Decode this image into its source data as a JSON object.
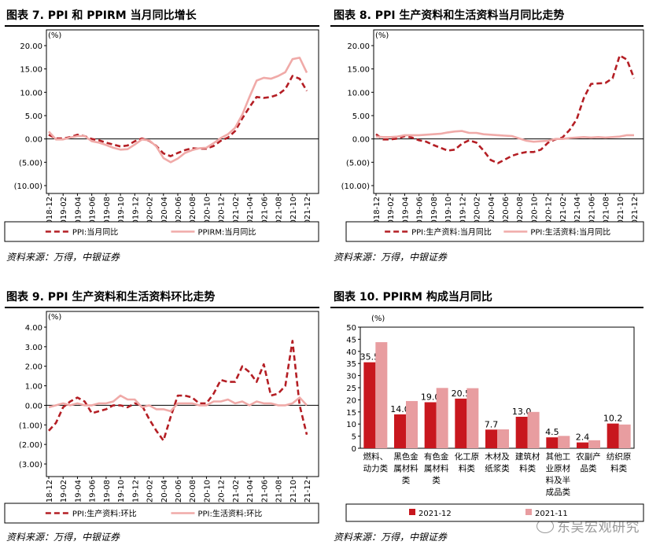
{
  "panels": [
    {
      "title": "图表 7. PPI 和 PPIRM 当月同比增长",
      "source": "资料来源：万得，中银证券"
    },
    {
      "title": "图表 8. PPI 生产资料和生活资料当月同比走势",
      "source": "资料来源：万得，中银证券"
    },
    {
      "title": "图表 9. PPI 生产资料和生活资料环比走势",
      "source": "资料来源：万得，中银证券"
    },
    {
      "title": "图表 10. PPIRM 构成当月同比",
      "source": "资料来源：万得，中银证券"
    }
  ],
  "watermark": "东吴宏观研究",
  "chart_data": [
    {
      "type": "line",
      "unit_label": "(%)",
      "x": [
        "2018-12",
        "2019-01",
        "2019-02",
        "2019-03",
        "2019-04",
        "2019-05",
        "2019-06",
        "2019-07",
        "2019-08",
        "2019-09",
        "2019-10",
        "2019-11",
        "2019-12",
        "2020-01",
        "2020-02",
        "2020-03",
        "2020-04",
        "2020-05",
        "2020-06",
        "2020-07",
        "2020-08",
        "2020-09",
        "2020-10",
        "2020-11",
        "2020-12",
        "2021-01",
        "2021-02",
        "2021-03",
        "2021-04",
        "2021-05",
        "2021-06",
        "2021-07",
        "2021-08",
        "2021-09",
        "2021-10",
        "2021-11",
        "2021-12"
      ],
      "x_tick_labels": [
        "2018-12",
        "2019-02",
        "2019-04",
        "2019-06",
        "2019-08",
        "2019-10",
        "2019-12",
        "2020-02",
        "2020-04",
        "2020-06",
        "2020-08",
        "2020-10",
        "2020-12",
        "2021-02",
        "2021-04",
        "2021-06",
        "2021-08",
        "2021-10",
        "2021-12"
      ],
      "ylim": [
        -10,
        20
      ],
      "y_tick_labels": [
        "20.00",
        "15.00",
        "10.00",
        "5.00",
        "0.00",
        "(5.00)",
        "(10.00)"
      ],
      "legend_position": "bottom",
      "series": [
        {
          "name": "PPI:当月同比",
          "style": "dashed",
          "color": "#b41e24",
          "values": [
            0.9,
            0.1,
            0.1,
            0.4,
            0.9,
            0.6,
            0.0,
            -0.3,
            -0.8,
            -1.2,
            -1.6,
            -1.4,
            -0.5,
            0.1,
            -0.4,
            -1.5,
            -3.1,
            -3.7,
            -3.0,
            -2.4,
            -2.0,
            -2.1,
            -2.1,
            -1.5,
            -0.4,
            0.3,
            1.7,
            4.4,
            6.8,
            9.0,
            8.8,
            9.0,
            9.5,
            10.7,
            13.5,
            12.9,
            10.3
          ]
        },
        {
          "name": "PPIRM:当月同比",
          "style": "solid",
          "color": "#f0aaa8",
          "values": [
            1.6,
            -0.1,
            -0.1,
            0.3,
            0.6,
            0.6,
            -0.5,
            -0.8,
            -1.3,
            -1.9,
            -2.3,
            -2.2,
            -1.2,
            -0.1,
            -0.3,
            -1.6,
            -4.1,
            -5.0,
            -4.2,
            -3.0,
            -2.4,
            -2.0,
            -1.9,
            -0.9,
            0.2,
            1.0,
            2.4,
            5.2,
            9.0,
            12.5,
            13.1,
            12.9,
            13.5,
            14.3,
            17.1,
            17.4,
            14.2
          ]
        }
      ]
    },
    {
      "type": "line",
      "unit_label": "(%)",
      "x": [
        "2018-12",
        "2019-01",
        "2019-02",
        "2019-03",
        "2019-04",
        "2019-05",
        "2019-06",
        "2019-07",
        "2019-08",
        "2019-09",
        "2019-10",
        "2019-11",
        "2019-12",
        "2020-01",
        "2020-02",
        "2020-03",
        "2020-04",
        "2020-05",
        "2020-06",
        "2020-07",
        "2020-08",
        "2020-09",
        "2020-10",
        "2020-11",
        "2020-12",
        "2021-01",
        "2021-02",
        "2021-03",
        "2021-04",
        "2021-05",
        "2021-06",
        "2021-07",
        "2021-08",
        "2021-09",
        "2021-10",
        "2021-11",
        "2021-12"
      ],
      "x_tick_labels": [
        "2018-12",
        "2019-02",
        "2019-04",
        "2019-06",
        "2019-08",
        "2019-10",
        "2019-12",
        "2020-02",
        "2020-04",
        "2020-06",
        "2020-08",
        "2020-10",
        "2020-12",
        "2021-02",
        "2021-04",
        "2021-06",
        "2021-08",
        "2021-10",
        "2021-12"
      ],
      "ylim": [
        -10,
        20
      ],
      "y_tick_labels": [
        "20.00",
        "15.00",
        "10.00",
        "5.00",
        "0.00",
        "(5.00)",
        "(10.00)"
      ],
      "legend_position": "bottom",
      "series": [
        {
          "name": "PPI:生产资料:当月同比",
          "style": "dashed",
          "color": "#b41e24",
          "values": [
            1.0,
            -0.1,
            -0.1,
            0.1,
            0.6,
            0.3,
            -0.3,
            -0.6,
            -1.3,
            -1.9,
            -2.5,
            -2.3,
            -1.0,
            -0.3,
            -0.8,
            -2.5,
            -4.5,
            -5.2,
            -4.4,
            -3.6,
            -3.1,
            -2.8,
            -2.8,
            -2.3,
            -0.8,
            -0.1,
            0.3,
            1.9,
            4.2,
            8.8,
            11.8,
            11.9,
            12.0,
            13.0,
            17.9,
            17.0,
            13.0
          ]
        },
        {
          "name": "PPI:生活资料:当月同比",
          "style": "solid",
          "color": "#f0aaa8",
          "values": [
            0.5,
            0.4,
            0.4,
            0.5,
            0.8,
            0.8,
            0.8,
            0.9,
            1.0,
            1.1,
            1.4,
            1.6,
            1.7,
            1.3,
            1.3,
            1.0,
            0.9,
            0.8,
            0.7,
            0.6,
            0.1,
            -0.4,
            -0.6,
            -0.5,
            -0.4,
            0.0,
            0.0,
            0.2,
            0.3,
            0.4,
            0.3,
            0.4,
            0.3,
            0.4,
            0.5,
            0.8,
            0.8
          ]
        }
      ]
    },
    {
      "type": "line",
      "unit_label": "(%)",
      "x": [
        "2018-12",
        "2019-01",
        "2019-02",
        "2019-03",
        "2019-04",
        "2019-05",
        "2019-06",
        "2019-07",
        "2019-08",
        "2019-09",
        "2019-10",
        "2019-11",
        "2019-12",
        "2020-01",
        "2020-02",
        "2020-03",
        "2020-04",
        "2020-05",
        "2020-06",
        "2020-07",
        "2020-08",
        "2020-09",
        "2020-10",
        "2020-11",
        "2020-12",
        "2021-01",
        "2021-02",
        "2021-03",
        "2021-04",
        "2021-05",
        "2021-06",
        "2021-07",
        "2021-08",
        "2021-09",
        "2021-10",
        "2021-11",
        "2021-12"
      ],
      "x_tick_labels": [
        "2018-12",
        "2019-02",
        "2019-04",
        "2019-06",
        "2019-08",
        "2019-10",
        "2019-12",
        "2020-02",
        "2020-04",
        "2020-06",
        "2020-08",
        "2020-10",
        "2020-12",
        "2021-02",
        "2021-04",
        "2021-06",
        "2021-08",
        "2021-10",
        "2021-12"
      ],
      "ylim": [
        -3,
        4
      ],
      "y_tick_labels": [
        "4.00",
        "3.00",
        "2.00",
        "1.00",
        "0.00",
        "(1.00)",
        "(2.00)",
        "(3.00)"
      ],
      "legend_position": "bottom",
      "series": [
        {
          "name": "PPI:生产资料:环比",
          "style": "dashed",
          "color": "#b41e24",
          "values": [
            -1.3,
            -0.9,
            -0.1,
            0.2,
            0.4,
            0.2,
            -0.4,
            -0.3,
            -0.2,
            0.0,
            0.0,
            -0.1,
            0.1,
            0.0,
            -0.7,
            -1.3,
            -1.8,
            -0.6,
            0.5,
            0.5,
            0.4,
            0.1,
            0.1,
            0.6,
            1.3,
            1.2,
            1.2,
            2.0,
            1.7,
            1.2,
            2.1,
            0.5,
            0.6,
            1.0,
            3.3,
            0.0,
            -1.5
          ]
        },
        {
          "name": "PPI:生活资料:环比",
          "style": "solid",
          "color": "#f0aaa8",
          "values": [
            -0.1,
            0.0,
            0.1,
            0.0,
            0.1,
            0.0,
            0.0,
            0.1,
            0.1,
            0.2,
            0.5,
            0.3,
            0.3,
            -0.1,
            0.0,
            -0.2,
            -0.2,
            -0.3,
            0.1,
            0.1,
            0.1,
            0.0,
            0.0,
            0.2,
            0.2,
            0.3,
            0.1,
            0.2,
            0.0,
            0.2,
            0.1,
            0.1,
            0.0,
            0.0,
            0.1,
            0.4,
            0.0
          ]
        }
      ]
    },
    {
      "type": "bar",
      "unit_label": "(%)",
      "categories": [
        "燃料、动力类",
        "黑色金属材料类",
        "有色金属材料类",
        "化工原料类",
        "木材及纸浆类",
        "建筑材料类",
        "其他工业原材料及半成品类",
        "农副产品类",
        "纺织原料类"
      ],
      "category_label_lines": [
        [
          "燃料、",
          "动力类"
        ],
        [
          "黑色金",
          "属材料",
          "类"
        ],
        [
          "有色金",
          "属材料",
          "类"
        ],
        [
          "化工原",
          "料类"
        ],
        [
          "木材及",
          "纸浆类"
        ],
        [
          "建筑材",
          "料类"
        ],
        [
          "其他工",
          "业原材",
          "料及半",
          "成品类"
        ],
        [
          "农副产",
          "品类"
        ],
        [
          "纺织原",
          "料类"
        ]
      ],
      "ylim": [
        0,
        50
      ],
      "y_tick_labels": [
        "50",
        "45",
        "40",
        "35",
        "30",
        "25",
        "20",
        "15",
        "10",
        "5",
        "0"
      ],
      "legend_position": "bottom",
      "series": [
        {
          "name": "2021-12",
          "color": "#c8171e",
          "values": [
            35.5,
            14.0,
            19.0,
            20.5,
            7.7,
            13.0,
            4.5,
            2.4,
            10.2
          ],
          "data_labels": [
            "35.5",
            "14.0",
            "19.0",
            "20.5",
            "7.7",
            "13.0",
            "4.5",
            "2.4",
            "10.2"
          ]
        },
        {
          "name": "2021-11",
          "color": "#e89da0",
          "values": [
            43.8,
            19.5,
            24.9,
            24.8,
            7.8,
            15.0,
            5.1,
            3.3,
            9.8
          ]
        }
      ]
    }
  ]
}
